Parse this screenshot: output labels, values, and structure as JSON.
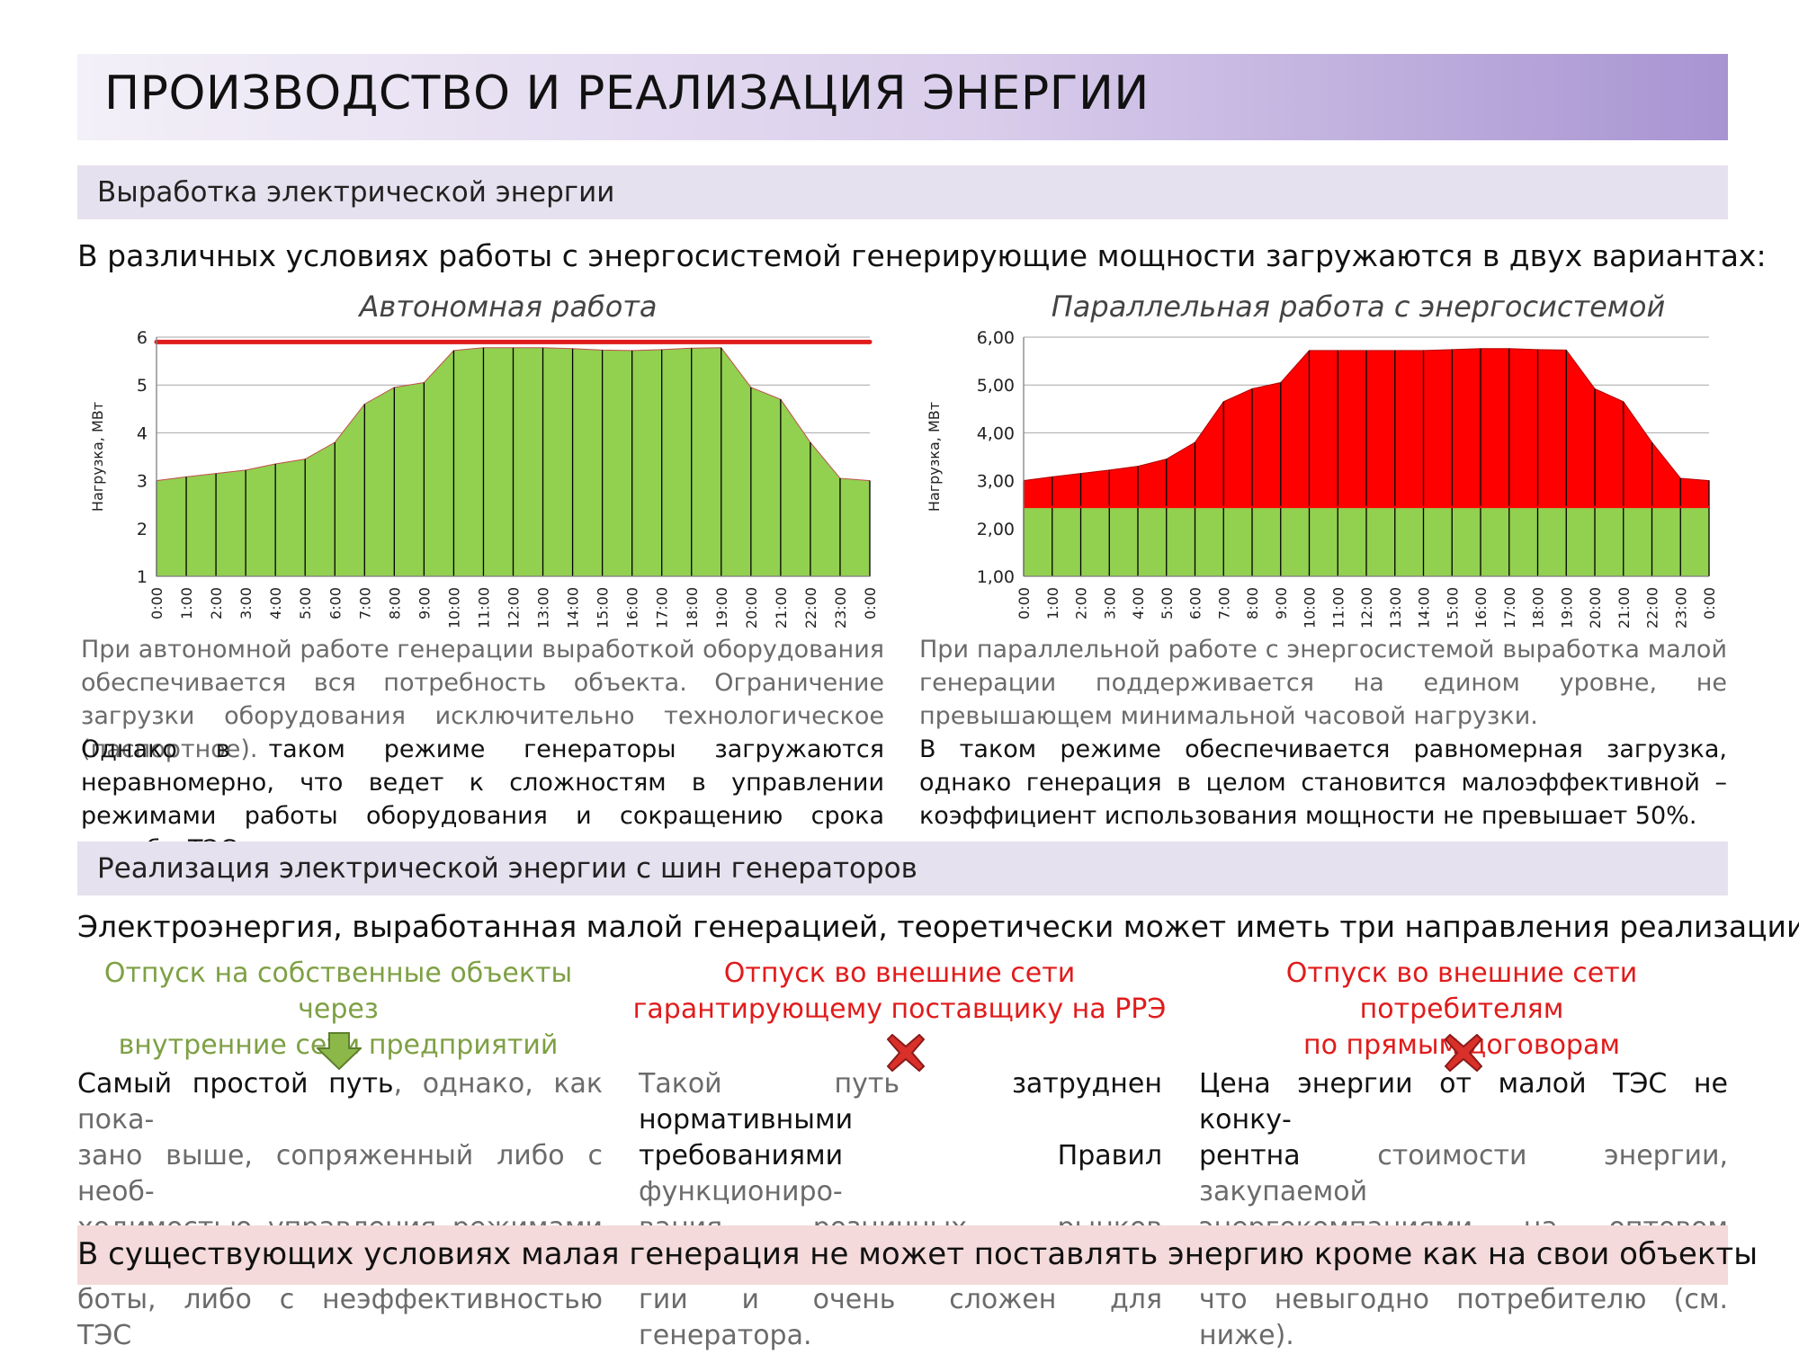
{
  "page_title": "ПРОИЗВОДСТВО И РЕАЛИЗАЦИЯ ЭНЕРГИИ",
  "section1": {
    "title": "Выработка электрической энергии",
    "headline": "В различных условиях работы с энергосистемой генерирующие мощности загружаются в двух вариантах:"
  },
  "left_text": {
    "p1": "При автономной работе генерации выработкой оборудования обеспечивается вся потребность объекта. Ограничение загрузки оборудования исключительно технологическое (паспортное).",
    "p2": "Однако в таком режиме генераторы загружаются неравномерно, что ведет к сложностям в управлении режимами работы оборудования и сокращению срока службы ТЭС в целом."
  },
  "right_text": {
    "p1": "При параллельной работе с энергосистемой выработка малой генерации поддерживается на едином уровне, не превышающем минимальной часовой нагрузки.",
    "p2": "В таком режиме обеспечивается равномерная загрузка, однако генерация в целом становится малоэффективной – коэффициент использования мощности не превышает 50%."
  },
  "section2": {
    "title": "Реализация электрической энергии с шин генераторов",
    "headline": "Электроэнергия, выработанная малой генерацией, теоретически может иметь три направления реализации:"
  },
  "options": [
    {
      "title_line1": "Отпуск на собственные объекты через",
      "title_line2": "внутренние сети предприятий",
      "text_line1_dark": "Самый простой путь",
      "text_line1_gray": ", однако, как пока-",
      "text_line2": "зано выше, сопряженный либо с необ-",
      "text_line3": "ходимостью управления режимами ра-",
      "text_line4": "боты, либо с неэффективностью ТЭС",
      "icon": "down-arrow-icon",
      "color": "#7ea044"
    },
    {
      "title_line1": "Отпуск во внешние сети",
      "title_line2": "гарантирующему поставщику на РРЭ",
      "text_line1_gray": "Такой путь ",
      "text_line1_dark": "затруднен нормативными",
      "text_line2_dark": "требованиями Правил",
      "text_line2_gray": " функциониро-",
      "text_line3": "вания розничных рынков электроэнер-",
      "text_line4": "гии и очень сложен для генератора.",
      "icon": "red-cross-icon",
      "color": "#e11b1b"
    },
    {
      "title_line1": "Отпуск во внешние сети потребителям",
      "title_line2": "по прямым договорам",
      "text_line1_dark": "Цена энергии от малой ТЭС не конку-",
      "text_line2_dark": "рентна",
      "text_line2_gray": " стоимости энергии, закупаемой",
      "text_line3": "энергокомпаниями на оптовом рынке,",
      "text_line4": "что невыгодно потребителю (см. ниже).",
      "icon": "red-cross-icon",
      "color": "#e11b1b"
    }
  ],
  "bottom_conclusion": "В существующих условиях малая генерация не может поставлять энергию кроме как на свои объекты",
  "chart_data": [
    {
      "type": "area",
      "title": "Автономная работа",
      "ylabel": "Нагрузка, МВт",
      "xlabel": "",
      "ylim": [
        1,
        6
      ],
      "yticks": [
        "1",
        "2",
        "3",
        "4",
        "5",
        "6"
      ],
      "x": [
        "0:00",
        "1:00",
        "2:00",
        "3:00",
        "4:00",
        "5:00",
        "6:00",
        "7:00",
        "8:00",
        "9:00",
        "10:00",
        "11:00",
        "12:00",
        "13:00",
        "14:00",
        "15:00",
        "16:00",
        "17:00",
        "18:00",
        "19:00",
        "20:00",
        "21:00",
        "22:00",
        "23:00",
        "0:00"
      ],
      "series": [
        {
          "name": "Нагрузка",
          "color": "#92d050",
          "values": [
            3.0,
            3.08,
            3.15,
            3.22,
            3.35,
            3.45,
            3.8,
            4.6,
            4.95,
            5.05,
            5.72,
            5.78,
            5.78,
            5.78,
            5.76,
            5.73,
            5.72,
            5.74,
            5.77,
            5.78,
            4.95,
            4.7,
            3.8,
            3.05,
            3.0
          ]
        },
        {
          "name": "Ограничение загрузки",
          "color": "#e11b1b",
          "values": [
            5.9,
            5.9,
            5.9,
            5.9,
            5.9,
            5.9,
            5.9,
            5.9,
            5.9,
            5.9,
            5.9,
            5.9,
            5.9,
            5.9,
            5.9,
            5.9,
            5.9,
            5.9,
            5.9,
            5.9,
            5.9,
            5.9,
            5.9,
            5.9,
            5.9
          ]
        }
      ]
    },
    {
      "type": "area",
      "title": "Параллельная работа с энергосистемой",
      "ylabel": "Нагрузка, МВт",
      "xlabel": "",
      "ylim": [
        1,
        6
      ],
      "yticks": [
        "1,00",
        "2,00",
        "3,00",
        "4,00",
        "5,00",
        "6,00"
      ],
      "x": [
        "0:00",
        "1:00",
        "2:00",
        "3:00",
        "4:00",
        "5:00",
        "6:00",
        "7:00",
        "8:00",
        "9:00",
        "10:00",
        "11:00",
        "12:00",
        "13:00",
        "14:00",
        "15:00",
        "16:00",
        "17:00",
        "18:00",
        "19:00",
        "20:00",
        "21:00",
        "22:00",
        "23:00",
        "0:00"
      ],
      "series": [
        {
          "name": "Нагрузка",
          "color": "#ff0000",
          "values": [
            3.0,
            3.08,
            3.15,
            3.22,
            3.3,
            3.45,
            3.8,
            4.65,
            4.92,
            5.05,
            5.72,
            5.72,
            5.72,
            5.72,
            5.72,
            5.74,
            5.76,
            5.76,
            5.74,
            5.73,
            4.92,
            4.65,
            3.8,
            3.05,
            3.0
          ]
        },
        {
          "name": "Малая генерация",
          "color": "#92d050",
          "values": [
            2.45,
            2.45,
            2.45,
            2.45,
            2.45,
            2.45,
            2.45,
            2.45,
            2.45,
            2.45,
            2.45,
            2.45,
            2.45,
            2.45,
            2.45,
            2.45,
            2.45,
            2.45,
            2.45,
            2.45,
            2.45,
            2.45,
            2.45,
            2.45,
            2.45
          ]
        }
      ]
    }
  ]
}
